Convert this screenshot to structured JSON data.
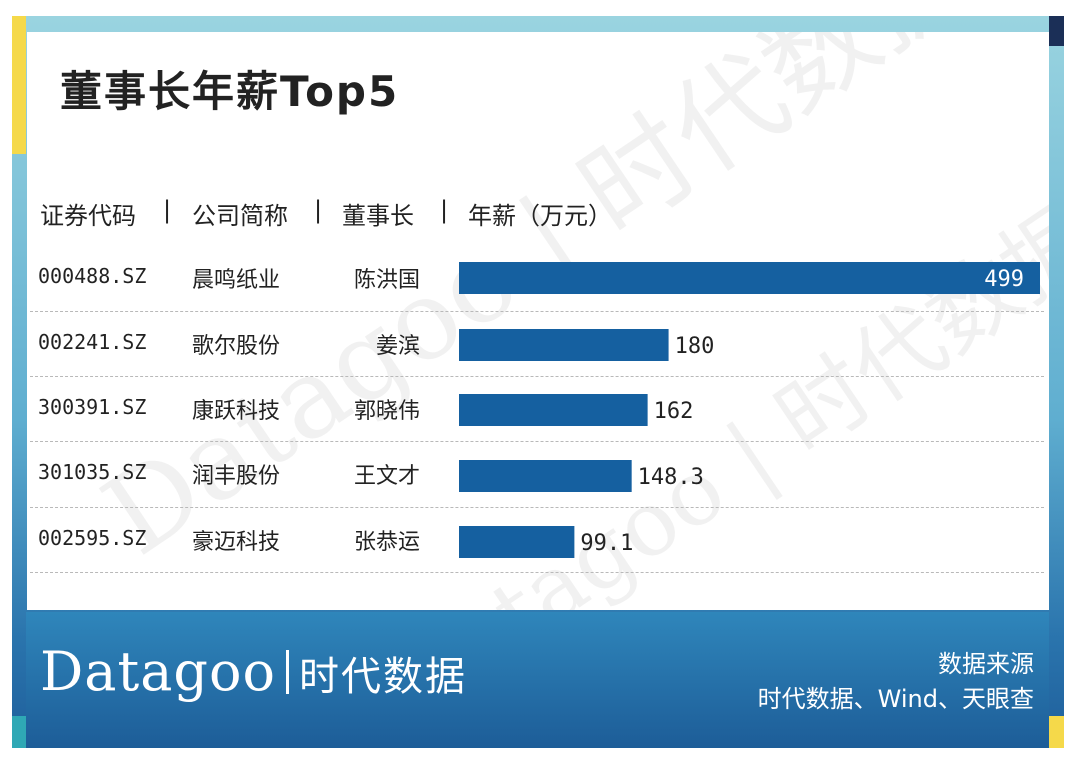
{
  "title": "董事长年薪Top5",
  "header": {
    "col_code": "证券代码",
    "sep1": "|",
    "col_company": "公司简称",
    "sep2": "|",
    "col_chair": "董事长",
    "sep3": "|",
    "col_salary": "年薪（万元）"
  },
  "rows": [
    {
      "code": "000488.SZ",
      "company": "晨鸣纸业",
      "chair": "陈洪国",
      "salary_label": "499"
    },
    {
      "code": "002241.SZ",
      "company": "歌尔股份",
      "chair": "姜滨",
      "salary_label": "180"
    },
    {
      "code": "300391.SZ",
      "company": "康跃科技",
      "chair": "郭晓伟",
      "salary_label": "162"
    },
    {
      "code": "301035.SZ",
      "company": "润丰股份",
      "chair": "王文才",
      "salary_label": "148.3"
    },
    {
      "code": "002595.SZ",
      "company": "豪迈科技",
      "chair": "张恭运",
      "salary_label": "99.1"
    }
  ],
  "chart_data": {
    "type": "bar",
    "orientation": "horizontal",
    "title": "董事长年薪Top5",
    "categories": [
      "晨鸣纸业",
      "歌尔股份",
      "康跃科技",
      "润丰股份",
      "豪迈科技"
    ],
    "values": [
      499,
      180,
      162,
      148.3,
      99.1
    ],
    "value_labels": [
      "499",
      "180",
      "162",
      "148.3",
      "99.1"
    ],
    "xlabel": "",
    "ylabel": "",
    "xlim": [
      0,
      499
    ],
    "grid": false,
    "bar_color": "#1560a0"
  },
  "colors": {
    "bar": "#1560a0",
    "footer": "#1d5d98",
    "accent_yellow": "#f5d94a",
    "accent_teal": "#2fa8b5",
    "accent_navy": "#1b2f57"
  },
  "watermark": {
    "brand": "Datagoo",
    "brand_cn": "时代数据"
  },
  "footer": {
    "logo_text": "Datagoo",
    "logo_cn": "时代数据",
    "source_title": "数据来源",
    "source_text": "时代数据、Wind、天眼查"
  }
}
